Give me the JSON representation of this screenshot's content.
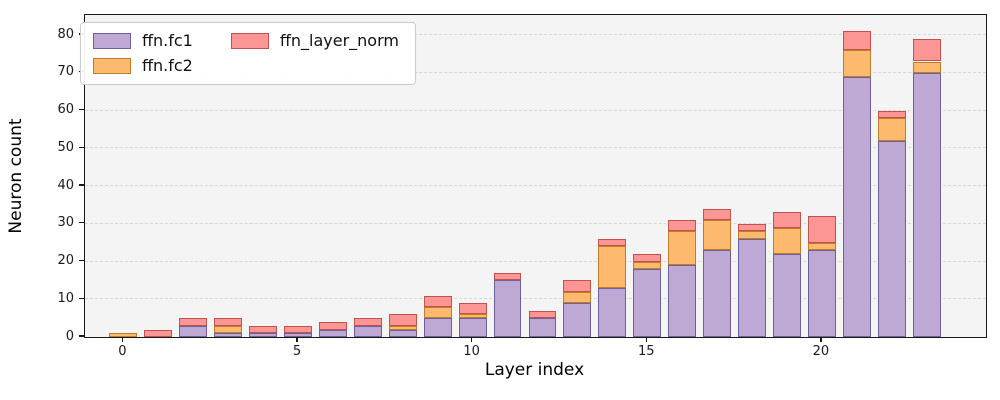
{
  "chart_data": {
    "type": "bar",
    "stacked": true,
    "title": "",
    "xlabel": "Layer index",
    "ylabel": "Neuron count",
    "categories": [
      0,
      1,
      2,
      3,
      4,
      5,
      6,
      7,
      8,
      9,
      10,
      11,
      12,
      13,
      14,
      15,
      16,
      17,
      18,
      19,
      20,
      21,
      22,
      23
    ],
    "series": [
      {
        "name": "ffn.fc1",
        "color": "#bda9d4",
        "edge_color": "#6e5f99",
        "values": [
          0,
          0,
          3,
          1,
          1,
          1,
          2,
          3,
          2,
          5,
          5,
          15,
          5,
          9,
          13,
          18,
          19,
          23,
          26,
          22,
          23,
          69,
          52,
          70
        ]
      },
      {
        "name": "ffn.fc2",
        "color": "#fdb96d",
        "edge_color": "#bf7d2a",
        "values": [
          1,
          0,
          0,
          2,
          0,
          0,
          0,
          0,
          1,
          3,
          1,
          0,
          0,
          3,
          11,
          2,
          9,
          8,
          2,
          7,
          2,
          7,
          6,
          3
        ]
      },
      {
        "name": "ffn_layer_norm",
        "color": "#fb9694",
        "edge_color": "#c2524e",
        "values": [
          0,
          2,
          2,
          2,
          2,
          2,
          2,
          2,
          3,
          3,
          3,
          2,
          2,
          3,
          2,
          2,
          3,
          3,
          2,
          4,
          7,
          5,
          2,
          6
        ]
      }
    ],
    "stack_totals": [
      1,
      2,
      5,
      5,
      3,
      3,
      4,
      5,
      6,
      11,
      9,
      17,
      7,
      15,
      26,
      22,
      31,
      34,
      30,
      33,
      32,
      81,
      60,
      79
    ],
    "xticks": [
      0,
      5,
      10,
      15,
      20
    ],
    "yticks": [
      0,
      10,
      20,
      30,
      40,
      50,
      60,
      70,
      80
    ],
    "xlim": [
      -1.1,
      24.7
    ],
    "ylim": [
      0,
      85.3
    ],
    "bar_width": 0.8,
    "grid": "horizontal-dashed",
    "legend_position": "upper-left",
    "plot_background": "#f5f4f5",
    "grid_color": "#d7d7d7"
  }
}
